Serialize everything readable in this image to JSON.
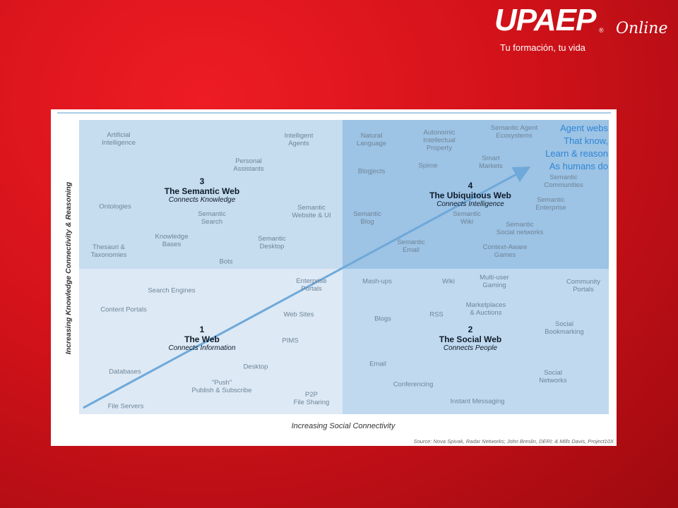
{
  "header": {
    "logo": "UPAEP",
    "registered": "®",
    "online": "Online",
    "tagline": "Tu formación, tu vida"
  },
  "diagram": {
    "y_axis_label": "Increasing Knowledge Connectivity & Reasoning",
    "x_axis_label": "Increasing Social Connectivity",
    "source": "Source: Nova Spivak, Radar Networks; John Breslin, DERI; & Mills Davis, Project10X",
    "annotation": [
      "Agent webs",
      "That know,",
      "Learn & reason",
      "As humans do"
    ],
    "quadrants": [
      {
        "number": "3",
        "title": "The Semantic Web",
        "subtitle": "Connects Knowledge",
        "items": [
          [
            "Artificial",
            "Intelligence"
          ],
          [
            "Intelligent",
            "Agents"
          ],
          [
            "Personal",
            "Assistants"
          ],
          [
            "Ontologies"
          ],
          [
            "Semantic",
            "Search"
          ],
          [
            "Semantic",
            "Website & UI"
          ],
          [
            "Knowledge",
            "Bases"
          ],
          [
            "Semantic",
            "Desktop"
          ],
          [
            "Thesauri &",
            "Taxonomies"
          ],
          [
            "Bots"
          ]
        ]
      },
      {
        "number": "4",
        "title": "The Ubiquitous Web",
        "subtitle": "Connects Intelligence",
        "items": [
          [
            "Natural",
            "Language"
          ],
          [
            "Autonomic",
            "Intellectual",
            "Property"
          ],
          [
            "Semantic Agent",
            "Ecosystems"
          ],
          [
            "Smart",
            "Markets"
          ],
          [
            "Blogjects"
          ],
          [
            "Spime"
          ],
          [
            "Semantic",
            "Communities"
          ],
          [
            "Semantic",
            "Enterprise"
          ],
          [
            "Semantic",
            "Blog"
          ],
          [
            "Semantic",
            "Wiki"
          ],
          [
            "Semantic",
            "Social networks"
          ],
          [
            "Semantic",
            "Email"
          ],
          [
            "Context-Aware",
            "Games"
          ]
        ]
      },
      {
        "number": "1",
        "title": "The Web",
        "subtitle": "Connects Information",
        "items": [
          [
            "Search Engines"
          ],
          [
            "Enterprise",
            "Portals"
          ],
          [
            "Content Portals"
          ],
          [
            "Web Sites"
          ],
          [
            "PIMS"
          ],
          [
            "Databases"
          ],
          [
            "Desktop"
          ],
          [
            "\"Push\"",
            "Publish & Subscribe"
          ],
          [
            "P2P",
            "File Sharing"
          ],
          [
            "File Servers"
          ]
        ]
      },
      {
        "number": "2",
        "title": "The Social Web",
        "subtitle": "Connects People",
        "items": [
          [
            "Mash-ups"
          ],
          [
            "Wiki"
          ],
          [
            "Multi-user",
            "Gaming"
          ],
          [
            "Community",
            "Portals"
          ],
          [
            "Marketplaces",
            "& Auctions"
          ],
          [
            "RSS"
          ],
          [
            "Blogs"
          ],
          [
            "Social",
            "Bookmarking"
          ],
          [
            "Email"
          ],
          [
            "Social",
            "Networks"
          ],
          [
            "Conferencing"
          ],
          [
            "Instant Messaging"
          ]
        ]
      }
    ]
  }
}
